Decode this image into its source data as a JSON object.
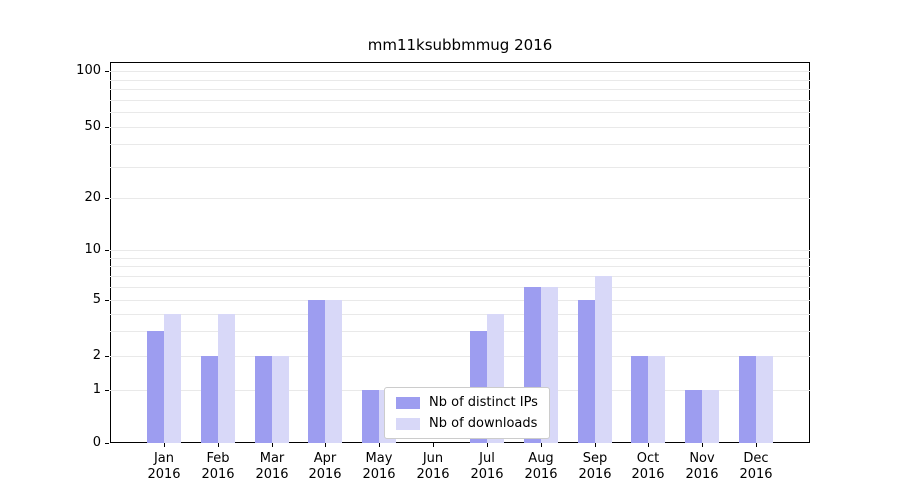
{
  "chart_data": {
    "type": "bar",
    "title": "mm11ksubbmmug 2016",
    "categories": [
      "Jan 2016",
      "Feb 2016",
      "Mar 2016",
      "Apr 2016",
      "May 2016",
      "Jun 2016",
      "Jul 2016",
      "Aug 2016",
      "Sep 2016",
      "Oct 2016",
      "Nov 2016",
      "Dec 2016"
    ],
    "series": [
      {
        "name": "Nb of distinct IPs",
        "color": "#9d9df0",
        "values": [
          3,
          2,
          2,
          5,
          1,
          0,
          3,
          6,
          5,
          2,
          1,
          2
        ]
      },
      {
        "name": "Nb of downloads",
        "color": "#d8d8f8",
        "values": [
          4,
          4,
          2,
          5,
          1,
          0,
          4,
          6,
          7,
          2,
          1,
          2
        ]
      }
    ],
    "xlabel": "",
    "ylabel": "",
    "y_scale": "symlog",
    "ylim": [
      0,
      100
    ],
    "y_ticks": [
      0,
      1,
      2,
      5,
      10,
      20,
      50,
      100
    ],
    "y_gridline_values": [
      1,
      2,
      3,
      4,
      5,
      6,
      7,
      8,
      9,
      10,
      20,
      30,
      40,
      50,
      60,
      70,
      80,
      90,
      100
    ],
    "grid": true,
    "legend_position": "lower center, inside plot"
  }
}
